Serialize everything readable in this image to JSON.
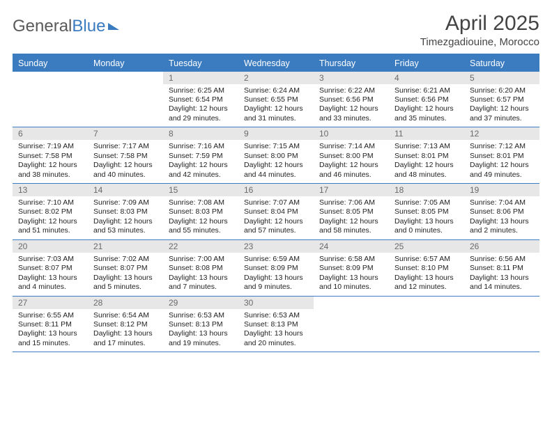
{
  "colors": {
    "accent": "#3b7bbf",
    "header_text": "#444444",
    "logo_gray": "#5a5a5a",
    "daynum_bg": "#e7e7e7",
    "daynum_text": "#6a6a6a",
    "body_text": "#222222",
    "bg": "#ffffff"
  },
  "typography": {
    "month_title_pt": 30,
    "location_pt": 15,
    "dow_pt": 12.5,
    "cell_pt": 10.5
  },
  "logo": {
    "part1": "General",
    "part2": "Blue"
  },
  "title": {
    "month": "April 2025",
    "location": "Timezgadiouine, Morocco"
  },
  "dow": [
    "Sunday",
    "Monday",
    "Tuesday",
    "Wednesday",
    "Thursday",
    "Friday",
    "Saturday"
  ],
  "layout": {
    "columns": 7,
    "leading_blanks": 2,
    "days_in_month": 30
  },
  "days": [
    {
      "n": 1,
      "sunrise": "6:25 AM",
      "sunset": "6:54 PM",
      "day_h": 12,
      "day_m": 29
    },
    {
      "n": 2,
      "sunrise": "6:24 AM",
      "sunset": "6:55 PM",
      "day_h": 12,
      "day_m": 31
    },
    {
      "n": 3,
      "sunrise": "6:22 AM",
      "sunset": "6:56 PM",
      "day_h": 12,
      "day_m": 33
    },
    {
      "n": 4,
      "sunrise": "6:21 AM",
      "sunset": "6:56 PM",
      "day_h": 12,
      "day_m": 35
    },
    {
      "n": 5,
      "sunrise": "6:20 AM",
      "sunset": "6:57 PM",
      "day_h": 12,
      "day_m": 37
    },
    {
      "n": 6,
      "sunrise": "7:19 AM",
      "sunset": "7:58 PM",
      "day_h": 12,
      "day_m": 38
    },
    {
      "n": 7,
      "sunrise": "7:17 AM",
      "sunset": "7:58 PM",
      "day_h": 12,
      "day_m": 40
    },
    {
      "n": 8,
      "sunrise": "7:16 AM",
      "sunset": "7:59 PM",
      "day_h": 12,
      "day_m": 42
    },
    {
      "n": 9,
      "sunrise": "7:15 AM",
      "sunset": "8:00 PM",
      "day_h": 12,
      "day_m": 44
    },
    {
      "n": 10,
      "sunrise": "7:14 AM",
      "sunset": "8:00 PM",
      "day_h": 12,
      "day_m": 46
    },
    {
      "n": 11,
      "sunrise": "7:13 AM",
      "sunset": "8:01 PM",
      "day_h": 12,
      "day_m": 48
    },
    {
      "n": 12,
      "sunrise": "7:12 AM",
      "sunset": "8:01 PM",
      "day_h": 12,
      "day_m": 49
    },
    {
      "n": 13,
      "sunrise": "7:10 AM",
      "sunset": "8:02 PM",
      "day_h": 12,
      "day_m": 51
    },
    {
      "n": 14,
      "sunrise": "7:09 AM",
      "sunset": "8:03 PM",
      "day_h": 12,
      "day_m": 53
    },
    {
      "n": 15,
      "sunrise": "7:08 AM",
      "sunset": "8:03 PM",
      "day_h": 12,
      "day_m": 55
    },
    {
      "n": 16,
      "sunrise": "7:07 AM",
      "sunset": "8:04 PM",
      "day_h": 12,
      "day_m": 57
    },
    {
      "n": 17,
      "sunrise": "7:06 AM",
      "sunset": "8:05 PM",
      "day_h": 12,
      "day_m": 58
    },
    {
      "n": 18,
      "sunrise": "7:05 AM",
      "sunset": "8:05 PM",
      "day_h": 13,
      "day_m": 0
    },
    {
      "n": 19,
      "sunrise": "7:04 AM",
      "sunset": "8:06 PM",
      "day_h": 13,
      "day_m": 2
    },
    {
      "n": 20,
      "sunrise": "7:03 AM",
      "sunset": "8:07 PM",
      "day_h": 13,
      "day_m": 4
    },
    {
      "n": 21,
      "sunrise": "7:02 AM",
      "sunset": "8:07 PM",
      "day_h": 13,
      "day_m": 5
    },
    {
      "n": 22,
      "sunrise": "7:00 AM",
      "sunset": "8:08 PM",
      "day_h": 13,
      "day_m": 7
    },
    {
      "n": 23,
      "sunrise": "6:59 AM",
      "sunset": "8:09 PM",
      "day_h": 13,
      "day_m": 9
    },
    {
      "n": 24,
      "sunrise": "6:58 AM",
      "sunset": "8:09 PM",
      "day_h": 13,
      "day_m": 10
    },
    {
      "n": 25,
      "sunrise": "6:57 AM",
      "sunset": "8:10 PM",
      "day_h": 13,
      "day_m": 12
    },
    {
      "n": 26,
      "sunrise": "6:56 AM",
      "sunset": "8:11 PM",
      "day_h": 13,
      "day_m": 14
    },
    {
      "n": 27,
      "sunrise": "6:55 AM",
      "sunset": "8:11 PM",
      "day_h": 13,
      "day_m": 15
    },
    {
      "n": 28,
      "sunrise": "6:54 AM",
      "sunset": "8:12 PM",
      "day_h": 13,
      "day_m": 17
    },
    {
      "n": 29,
      "sunrise": "6:53 AM",
      "sunset": "8:13 PM",
      "day_h": 13,
      "day_m": 19
    },
    {
      "n": 30,
      "sunrise": "6:53 AM",
      "sunset": "8:13 PM",
      "day_h": 13,
      "day_m": 20
    }
  ],
  "labels": {
    "sunrise": "Sunrise:",
    "sunset": "Sunset:",
    "daylight_prefix": "Daylight:",
    "hours_word": "hours",
    "and_word": "and",
    "minutes_word": "minutes."
  }
}
